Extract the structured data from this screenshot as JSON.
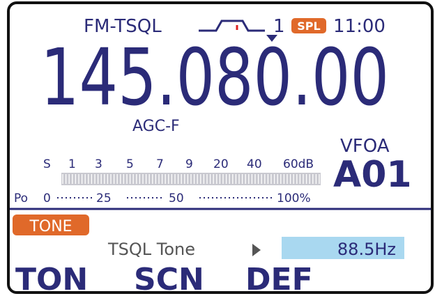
{
  "status": {
    "mode": "FM-TSQL",
    "filter": "1",
    "split": "SPL",
    "time": "11:00"
  },
  "frequency": "145.080.00",
  "agc": "AGC-F",
  "vfo": "VFOA",
  "memory": "A01",
  "s_meter": {
    "labels": [
      "S",
      "1",
      "3",
      "5",
      "7",
      "9",
      "20",
      "40",
      "60dB"
    ]
  },
  "po_meter": {
    "labels": [
      "Po",
      "0",
      "25",
      "50",
      "100%"
    ]
  },
  "tone_badge": "TONE",
  "setting": {
    "label": "TSQL Tone",
    "value": "88.5Hz"
  },
  "softkeys": [
    "TON",
    "SCN",
    "DEF"
  ]
}
